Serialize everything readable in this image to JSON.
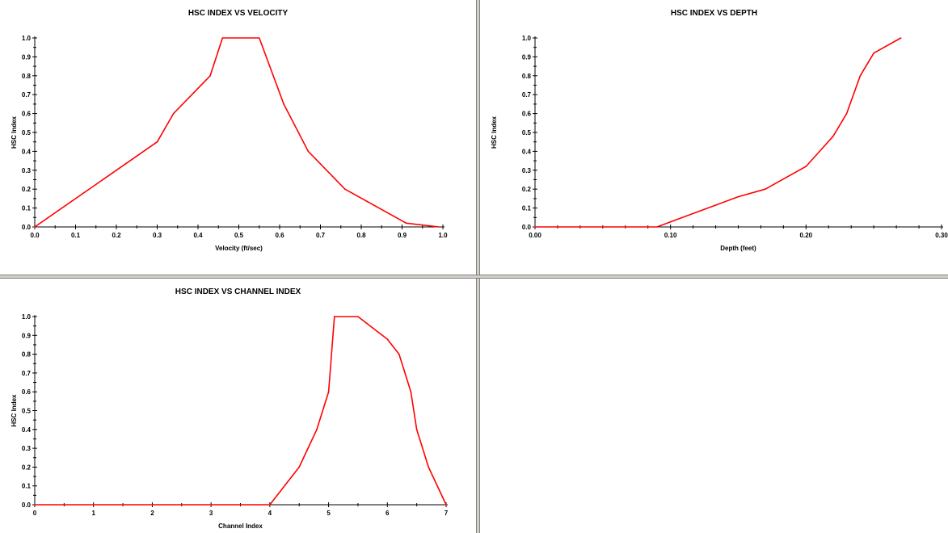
{
  "chart_data": [
    {
      "id": "velocity",
      "type": "line",
      "title": "HSC INDEX VS VELOCITY",
      "xlabel": "Velocity (ft/sec)",
      "ylabel": "HSC Index",
      "xlim": [
        0,
        1.0
      ],
      "ylim": [
        0,
        1.0
      ],
      "xticks": [
        "0.0",
        "0.1",
        "0.2",
        "0.3",
        "0.4",
        "0.5",
        "0.6",
        "0.7",
        "0.8",
        "0.9",
        "1.0"
      ],
      "xtick_values": [
        0,
        0.1,
        0.2,
        0.3,
        0.4,
        0.5,
        0.6,
        0.7,
        0.8,
        0.9,
        1.0
      ],
      "yticks": [
        "0.0",
        "0.1",
        "0.2",
        "0.3",
        "0.4",
        "0.5",
        "0.6",
        "0.7",
        "0.8",
        "0.9",
        "1.0"
      ],
      "ytick_values": [
        0,
        0.1,
        0.2,
        0.3,
        0.4,
        0.5,
        0.6,
        0.7,
        0.8,
        0.9,
        1.0
      ],
      "grid": false,
      "line_color": "#ff0000",
      "x": [
        0,
        0.3,
        0.34,
        0.43,
        0.46,
        0.55,
        0.61,
        0.67,
        0.76,
        0.91,
        0.99
      ],
      "y": [
        0,
        0.45,
        0.6,
        0.8,
        1.0,
        1.0,
        0.65,
        0.4,
        0.2,
        0.02,
        0
      ]
    },
    {
      "id": "depth",
      "type": "line",
      "title": "HSC INDEX VS DEPTH",
      "xlabel": "Depth (feet)",
      "ylabel": "HSC Index",
      "xlim": [
        0,
        0.3
      ],
      "ylim": [
        0,
        1.0
      ],
      "xticks": [
        "0.00",
        "0.10",
        "0.20",
        "0.30"
      ],
      "xtick_values": [
        0,
        0.1,
        0.2,
        0.3
      ],
      "yticks": [
        "0.0",
        "0.1",
        "0.2",
        "0.3",
        "0.4",
        "0.5",
        "0.6",
        "0.7",
        "0.8",
        "0.9",
        "1.0"
      ],
      "ytick_values": [
        0,
        0.1,
        0.2,
        0.3,
        0.4,
        0.5,
        0.6,
        0.7,
        0.8,
        0.9,
        1.0
      ],
      "grid": false,
      "line_color": "#ff0000",
      "x": [
        0,
        0.09,
        0.15,
        0.17,
        0.2,
        0.22,
        0.23,
        0.24,
        0.25,
        0.27
      ],
      "y": [
        0,
        0,
        0.16,
        0.2,
        0.32,
        0.48,
        0.6,
        0.8,
        0.92,
        1.0
      ]
    },
    {
      "id": "channel",
      "type": "line",
      "title": "HSC INDEX VS CHANNEL INDEX",
      "xlabel": "Channel Index",
      "ylabel": "HSC Index",
      "xlim": [
        0,
        7
      ],
      "ylim": [
        0,
        1.0
      ],
      "xticks": [
        "0",
        "1",
        "2",
        "3",
        "4",
        "5",
        "6",
        "7"
      ],
      "xtick_values": [
        0,
        1,
        2,
        3,
        4,
        5,
        6,
        7
      ],
      "yticks": [
        "0.0",
        "0.1",
        "0.2",
        "0.3",
        "0.4",
        "0.5",
        "0.6",
        "0.7",
        "0.8",
        "0.9",
        "1.0"
      ],
      "ytick_values": [
        0,
        0.1,
        0.2,
        0.3,
        0.4,
        0.5,
        0.6,
        0.7,
        0.8,
        0.9,
        1.0
      ],
      "grid": false,
      "line_color": "#ff0000",
      "x": [
        0,
        4.0,
        4.5,
        4.8,
        5.0,
        5.1,
        5.5,
        6.0,
        6.2,
        6.4,
        6.5,
        6.7,
        7.0
      ],
      "y": [
        0,
        0,
        0.2,
        0.4,
        0.6,
        1.0,
        1.0,
        0.88,
        0.8,
        0.6,
        0.4,
        0.2,
        0
      ]
    }
  ]
}
